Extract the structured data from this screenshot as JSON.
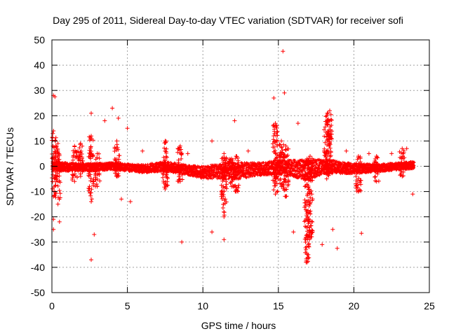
{
  "chart_data": {
    "type": "scatter",
    "title": "Day 295 of 2011, Sidereal Day-to-day VTEC variation (SDTVAR) for receiver sofi",
    "xlabel": "GPS time / hours",
    "ylabel": "SDTVAR / TECUs",
    "xlim": [
      0,
      25
    ],
    "ylim": [
      -50,
      50
    ],
    "xticks": [
      0,
      5,
      10,
      15,
      20,
      25
    ],
    "yticks": [
      -50,
      -40,
      -30,
      -20,
      -10,
      0,
      10,
      20,
      30,
      40,
      50
    ],
    "xtick_labels": [
      "0",
      "5",
      "10",
      "15",
      "20",
      "25"
    ],
    "ytick_labels": [
      "-50",
      "-40",
      "-30",
      "-20",
      "-10",
      "0",
      "10",
      "20",
      "30",
      "40",
      "50"
    ],
    "grid": true,
    "marker": "+",
    "color": "#ff0000",
    "band": {
      "x_start": 0.0,
      "x_end": 24.0,
      "center": [
        [
          0,
          0
        ],
        [
          2,
          -0.5
        ],
        [
          4,
          0
        ],
        [
          6,
          -1
        ],
        [
          7.5,
          0
        ],
        [
          9,
          -1.5
        ],
        [
          10,
          -2.5
        ],
        [
          11,
          -2
        ],
        [
          12,
          -2
        ],
        [
          13,
          -1.5
        ],
        [
          14,
          -1
        ],
        [
          15,
          -0.5
        ],
        [
          16,
          -1
        ],
        [
          17,
          -1.5
        ],
        [
          18,
          0
        ],
        [
          19,
          -0.5
        ],
        [
          20,
          -1
        ],
        [
          22,
          -0.5
        ],
        [
          24,
          0.5
        ]
      ],
      "halfwidth": [
        [
          0,
          2
        ],
        [
          2,
          1.5
        ],
        [
          5,
          1.5
        ],
        [
          7.5,
          2
        ],
        [
          9,
          2
        ],
        [
          10,
          2.5
        ],
        [
          11,
          3
        ],
        [
          12,
          3.5
        ],
        [
          13,
          3
        ],
        [
          14,
          2.5
        ],
        [
          15,
          3
        ],
        [
          16,
          3.5
        ],
        [
          17,
          4
        ],
        [
          18,
          3
        ],
        [
          19,
          2.5
        ],
        [
          20,
          2
        ],
        [
          22,
          1.5
        ],
        [
          24,
          1.5
        ]
      ]
    },
    "spikes": [
      {
        "x": 0.1,
        "ymin": -12,
        "ymax": 14
      },
      {
        "x": 0.4,
        "ymin": -15,
        "ymax": 9
      },
      {
        "x": 1.5,
        "ymin": -6,
        "ymax": 8
      },
      {
        "x": 1.9,
        "ymin": -4,
        "ymax": 9
      },
      {
        "x": 2.6,
        "ymin": -14,
        "ymax": 12
      },
      {
        "x": 3.0,
        "ymin": -8,
        "ymax": 5
      },
      {
        "x": 4.3,
        "ymin": -4,
        "ymax": 10
      },
      {
        "x": 7.5,
        "ymin": -9,
        "ymax": 10
      },
      {
        "x": 8.5,
        "ymin": -6,
        "ymax": 8
      },
      {
        "x": 11.4,
        "ymin": -20,
        "ymax": 5
      },
      {
        "x": 11.9,
        "ymin": -8,
        "ymax": 3
      },
      {
        "x": 12.2,
        "ymin": -10,
        "ymax": 4
      },
      {
        "x": 14.8,
        "ymin": -11,
        "ymax": 17
      },
      {
        "x": 15.2,
        "ymin": -8,
        "ymax": 10
      },
      {
        "x": 15.5,
        "ymin": -12,
        "ymax": 8
      },
      {
        "x": 16.9,
        "ymin": -38,
        "ymax": 3
      },
      {
        "x": 17.1,
        "ymin": -28,
        "ymax": 4
      },
      {
        "x": 18.2,
        "ymin": -5,
        "ymax": 20
      },
      {
        "x": 18.4,
        "ymin": -3,
        "ymax": 22
      },
      {
        "x": 20.3,
        "ymin": -10,
        "ymax": 4
      },
      {
        "x": 21.5,
        "ymin": -6,
        "ymax": 4
      },
      {
        "x": 23.2,
        "ymin": -4,
        "ymax": 7
      }
    ],
    "outliers": [
      {
        "x": 0.1,
        "y": 28
      },
      {
        "x": 0.2,
        "y": 27.5
      },
      {
        "x": 0.1,
        "y": -25
      },
      {
        "x": 0.1,
        "y": -21
      },
      {
        "x": 0.5,
        "y": -22
      },
      {
        "x": 2.6,
        "y": -37
      },
      {
        "x": 2.8,
        "y": -27
      },
      {
        "x": 2.6,
        "y": 21
      },
      {
        "x": 4.0,
        "y": 23
      },
      {
        "x": 4.4,
        "y": 19
      },
      {
        "x": 3.5,
        "y": 18
      },
      {
        "x": 5.0,
        "y": 15
      },
      {
        "x": 5.2,
        "y": -14
      },
      {
        "x": 4.6,
        "y": -13
      },
      {
        "x": 8.6,
        "y": -30
      },
      {
        "x": 10.6,
        "y": 10
      },
      {
        "x": 10.6,
        "y": -26
      },
      {
        "x": 11.4,
        "y": -29
      },
      {
        "x": 12.1,
        "y": 18
      },
      {
        "x": 14.7,
        "y": 27
      },
      {
        "x": 15.3,
        "y": 45.5
      },
      {
        "x": 15.4,
        "y": 29
      },
      {
        "x": 16.3,
        "y": 17
      },
      {
        "x": 16.0,
        "y": -26
      },
      {
        "x": 17.9,
        "y": -31
      },
      {
        "x": 18.6,
        "y": -25
      },
      {
        "x": 18.9,
        "y": -32.5
      },
      {
        "x": 20.5,
        "y": -26.5
      },
      {
        "x": 23.5,
        "y": 7
      },
      {
        "x": 23.9,
        "y": -11
      },
      {
        "x": 22.5,
        "y": 5
      },
      {
        "x": 6.0,
        "y": 6
      },
      {
        "x": 9.0,
        "y": 5
      },
      {
        "x": 13.0,
        "y": 6
      },
      {
        "x": 19.5,
        "y": 6
      },
      {
        "x": 21.0,
        "y": 5
      }
    ]
  }
}
